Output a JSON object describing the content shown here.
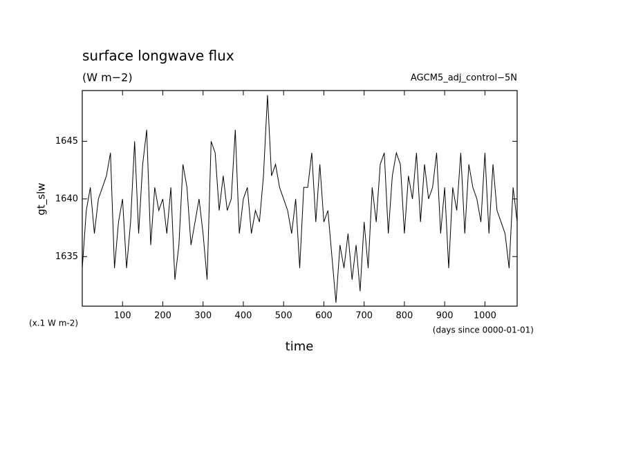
{
  "chart_data": {
    "type": "line",
    "title": "surface longwave flux",
    "subtitle": "(W m−2)",
    "annotation": "AGCM5_adj_control−5N",
    "y_label": "gt_slw",
    "y_unit": "(x.1 W m-2)",
    "x_label": "time",
    "x_unit": "(days since 0000-01-01)",
    "xlim": [
      0,
      1080
    ],
    "ylim": [
      1630.7,
      1649.4
    ],
    "xticks": [
      100,
      200,
      300,
      400,
      500,
      600,
      700,
      800,
      900,
      1000
    ],
    "yticks": [
      1635,
      1640,
      1645
    ],
    "color": "#000000",
    "x": [
      0,
      10,
      20,
      30,
      40,
      50,
      60,
      70,
      80,
      90,
      100,
      110,
      120,
      130,
      140,
      150,
      160,
      170,
      180,
      190,
      200,
      210,
      220,
      230,
      240,
      250,
      260,
      270,
      280,
      290,
      300,
      310,
      320,
      330,
      340,
      350,
      360,
      370,
      380,
      390,
      400,
      410,
      420,
      430,
      440,
      450,
      460,
      470,
      480,
      490,
      500,
      510,
      520,
      530,
      540,
      550,
      560,
      570,
      580,
      590,
      600,
      610,
      620,
      630,
      640,
      650,
      660,
      670,
      680,
      690,
      700,
      710,
      720,
      730,
      740,
      750,
      760,
      770,
      780,
      790,
      800,
      810,
      820,
      830,
      840,
      850,
      860,
      870,
      880,
      890,
      900,
      910,
      920,
      930,
      940,
      950,
      960,
      970,
      980,
      990,
      1000,
      1010,
      1020,
      1030,
      1040,
      1050,
      1060,
      1070,
      1080
    ],
    "values": [
      1634,
      1639,
      1641,
      1637,
      1640,
      1641,
      1642,
      1644,
      1634,
      1638,
      1640,
      1634,
      1638,
      1645,
      1637,
      1643,
      1646,
      1636,
      1641,
      1639,
      1640,
      1637,
      1641,
      1633,
      1636,
      1643,
      1641,
      1636,
      1638,
      1640,
      1637,
      1633,
      1645,
      1644,
      1639,
      1642,
      1639,
      1640,
      1646,
      1637,
      1640,
      1641,
      1637,
      1639,
      1638,
      1642,
      1649,
      1642,
      1643,
      1641,
      1640,
      1639,
      1637,
      1640,
      1634,
      1641,
      1641,
      1644,
      1638,
      1643,
      1638,
      1639,
      1635,
      1631,
      1636,
      1634,
      1637,
      1633,
      1636,
      1632,
      1638,
      1634,
      1641,
      1638,
      1643,
      1644,
      1637,
      1642,
      1644,
      1643,
      1637,
      1642,
      1640,
      1644,
      1638,
      1643,
      1640,
      1641,
      1644,
      1637,
      1641,
      1634,
      1641,
      1639,
      1644,
      1637,
      1643,
      1641,
      1640,
      1638,
      1644,
      1637,
      1643,
      1639,
      1638,
      1637,
      1634,
      1641,
      1638
    ]
  }
}
